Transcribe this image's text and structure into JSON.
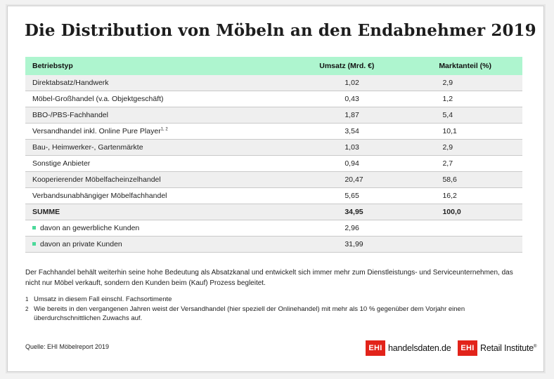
{
  "title": "Die Distribution von Möbeln an den Endabnehmer 2019",
  "table": {
    "headers": [
      "Betriebstyp",
      "Umsatz (Mrd. €)",
      "Marktanteil (%)"
    ],
    "rows": [
      {
        "label": "Direktabsatz/Handwerk",
        "sup": "",
        "umsatz": "1,02",
        "anteil": "2,9"
      },
      {
        "label": "Möbel-Großhandel (v.a. Objektgeschäft)",
        "sup": "",
        "umsatz": "0,43",
        "anteil": "1,2"
      },
      {
        "label": "BBO-/PBS-Fachhandel",
        "sup": "",
        "umsatz": "1,87",
        "anteil": "5,4"
      },
      {
        "label": "Versandhandel inkl. Online Pure Player",
        "sup": "1, 2",
        "umsatz": "3,54",
        "anteil": "10,1"
      },
      {
        "label": "Bau-, Heimwerker-, Gartenmärkte",
        "sup": "",
        "umsatz": "1,03",
        "anteil": "2,9"
      },
      {
        "label": "Sonstige Anbieter",
        "sup": "",
        "umsatz": "0,94",
        "anteil": "2,7"
      },
      {
        "label": "Kooperierender Möbelfacheinzelhandel",
        "sup": "",
        "umsatz": "20,47",
        "anteil": "58,6"
      },
      {
        "label": "Verbandsunabhängiger Möbelfachhandel",
        "sup": "",
        "umsatz": "5,65",
        "anteil": "16,2"
      },
      {
        "label": "SUMME",
        "sup": "",
        "umsatz": "34,95",
        "anteil": "100,0"
      },
      {
        "label": "davon an gewerbliche Kunden",
        "sup": "",
        "umsatz": "2,96",
        "anteil": ""
      },
      {
        "label": "davon an private Kunden",
        "sup": "",
        "umsatz": "31,99",
        "anteil": ""
      }
    ]
  },
  "paragraph": "Der Fachhandel behält weiterhin seine hohe Bedeutung als Absatzkanal und entwickelt sich immer mehr zum Dienstleistungs- und Serviceunternehmen, das nicht nur Möbel verkauft, sondern den Kunden beim (Kauf) Prozess begleitet.",
  "footnotes": [
    {
      "marker": "1",
      "text": "Umsatz in diesem Fall einschl. Fachsortimente"
    },
    {
      "marker": "2",
      "text": "Wie bereits in den vergangenen Jahren weist der Versandhandel (hier speziell der Onlinehandel) mit mehr als 10 % gegenüber dem Vorjahr einen überdurchschnittlichen Zuwachs auf."
    }
  ],
  "source": "Quelle: EHI Möbelreport 2019",
  "logos": {
    "box_text": "EHI",
    "logo1_text": "handelsdaten.de",
    "logo2_text": "Retail Institute",
    "logo2_mark": "®"
  },
  "colors": {
    "header_bg": "#aef5cf",
    "accent_green": "#4bd99a",
    "logo_red": "#e2231a"
  }
}
